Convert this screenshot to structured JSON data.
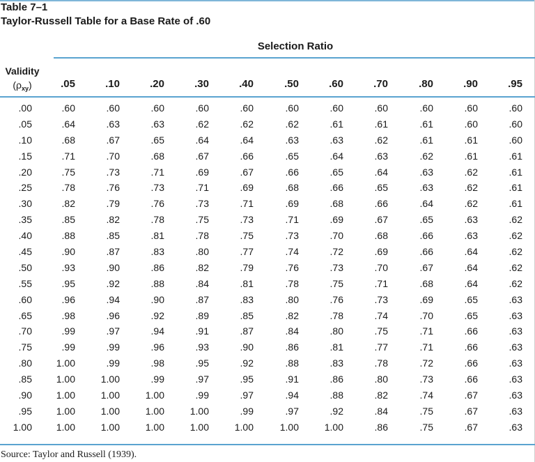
{
  "caption": {
    "label": "Table 7–1",
    "title": "Taylor-Russell Table for a Base Rate of .60"
  },
  "header": {
    "group_label": "Selection Ratio",
    "validity_label": "Validity",
    "validity_symbol": "(ρ",
    "validity_subscript": "xy",
    "validity_close": ")",
    "selection_ratios": [
      ".05",
      ".10",
      ".20",
      ".30",
      ".40",
      ".50",
      ".60",
      ".70",
      ".80",
      ".90",
      ".95"
    ]
  },
  "rows": [
    {
      "validity": ".00",
      "values": [
        ".60",
        ".60",
        ".60",
        ".60",
        ".60",
        ".60",
        ".60",
        ".60",
        ".60",
        ".60",
        ".60"
      ]
    },
    {
      "validity": ".05",
      "values": [
        ".64",
        ".63",
        ".63",
        ".62",
        ".62",
        ".62",
        ".61",
        ".61",
        ".61",
        ".60",
        ".60"
      ]
    },
    {
      "validity": ".10",
      "values": [
        ".68",
        ".67",
        ".65",
        ".64",
        ".64",
        ".63",
        ".63",
        ".62",
        ".61",
        ".61",
        ".60"
      ]
    },
    {
      "validity": ".15",
      "values": [
        ".71",
        ".70",
        ".68",
        ".67",
        ".66",
        ".65",
        ".64",
        ".63",
        ".62",
        ".61",
        ".61"
      ]
    },
    {
      "validity": ".20",
      "values": [
        ".75",
        ".73",
        ".71",
        ".69",
        ".67",
        ".66",
        ".65",
        ".64",
        ".63",
        ".62",
        ".61"
      ]
    },
    {
      "validity": ".25",
      "values": [
        ".78",
        ".76",
        ".73",
        ".71",
        ".69",
        ".68",
        ".66",
        ".65",
        ".63",
        ".62",
        ".61"
      ]
    },
    {
      "validity": ".30",
      "values": [
        ".82",
        ".79",
        ".76",
        ".73",
        ".71",
        ".69",
        ".68",
        ".66",
        ".64",
        ".62",
        ".61"
      ]
    },
    {
      "validity": ".35",
      "values": [
        ".85",
        ".82",
        ".78",
        ".75",
        ".73",
        ".71",
        ".69",
        ".67",
        ".65",
        ".63",
        ".62"
      ]
    },
    {
      "validity": ".40",
      "values": [
        ".88",
        ".85",
        ".81",
        ".78",
        ".75",
        ".73",
        ".70",
        ".68",
        ".66",
        ".63",
        ".62"
      ]
    },
    {
      "validity": ".45",
      "values": [
        ".90",
        ".87",
        ".83",
        ".80",
        ".77",
        ".74",
        ".72",
        ".69",
        ".66",
        ".64",
        ".62"
      ]
    },
    {
      "validity": ".50",
      "values": [
        ".93",
        ".90",
        ".86",
        ".82",
        ".79",
        ".76",
        ".73",
        ".70",
        ".67",
        ".64",
        ".62"
      ]
    },
    {
      "validity": ".55",
      "values": [
        ".95",
        ".92",
        ".88",
        ".84",
        ".81",
        ".78",
        ".75",
        ".71",
        ".68",
        ".64",
        ".62"
      ]
    },
    {
      "validity": ".60",
      "values": [
        ".96",
        ".94",
        ".90",
        ".87",
        ".83",
        ".80",
        ".76",
        ".73",
        ".69",
        ".65",
        ".63"
      ]
    },
    {
      "validity": ".65",
      "values": [
        ".98",
        ".96",
        ".92",
        ".89",
        ".85",
        ".82",
        ".78",
        ".74",
        ".70",
        ".65",
        ".63"
      ]
    },
    {
      "validity": ".70",
      "values": [
        ".99",
        ".97",
        ".94",
        ".91",
        ".87",
        ".84",
        ".80",
        ".75",
        ".71",
        ".66",
        ".63"
      ]
    },
    {
      "validity": ".75",
      "values": [
        ".99",
        ".99",
        ".96",
        ".93",
        ".90",
        ".86",
        ".81",
        ".77",
        ".71",
        ".66",
        ".63"
      ]
    },
    {
      "validity": ".80",
      "values": [
        "1.00",
        ".99",
        ".98",
        ".95",
        ".92",
        ".88",
        ".83",
        ".78",
        ".72",
        ".66",
        ".63"
      ]
    },
    {
      "validity": ".85",
      "values": [
        "1.00",
        "1.00",
        ".99",
        ".97",
        ".95",
        ".91",
        ".86",
        ".80",
        ".73",
        ".66",
        ".63"
      ]
    },
    {
      "validity": ".90",
      "values": [
        "1.00",
        "1.00",
        "1.00",
        ".99",
        ".97",
        ".94",
        ".88",
        ".82",
        ".74",
        ".67",
        ".63"
      ]
    },
    {
      "validity": ".95",
      "values": [
        "1.00",
        "1.00",
        "1.00",
        "1.00",
        ".99",
        ".97",
        ".92",
        ".84",
        ".75",
        ".67",
        ".63"
      ]
    },
    {
      "validity": "1.00",
      "values": [
        "1.00",
        "1.00",
        "1.00",
        "1.00",
        "1.00",
        "1.00",
        "1.00",
        ".86",
        ".75",
        ".67",
        ".63"
      ]
    }
  ],
  "source": "Source: Taylor and Russell (1939).",
  "colors": {
    "rule": "#5aa3d0",
    "text": "#1a1a1a"
  }
}
